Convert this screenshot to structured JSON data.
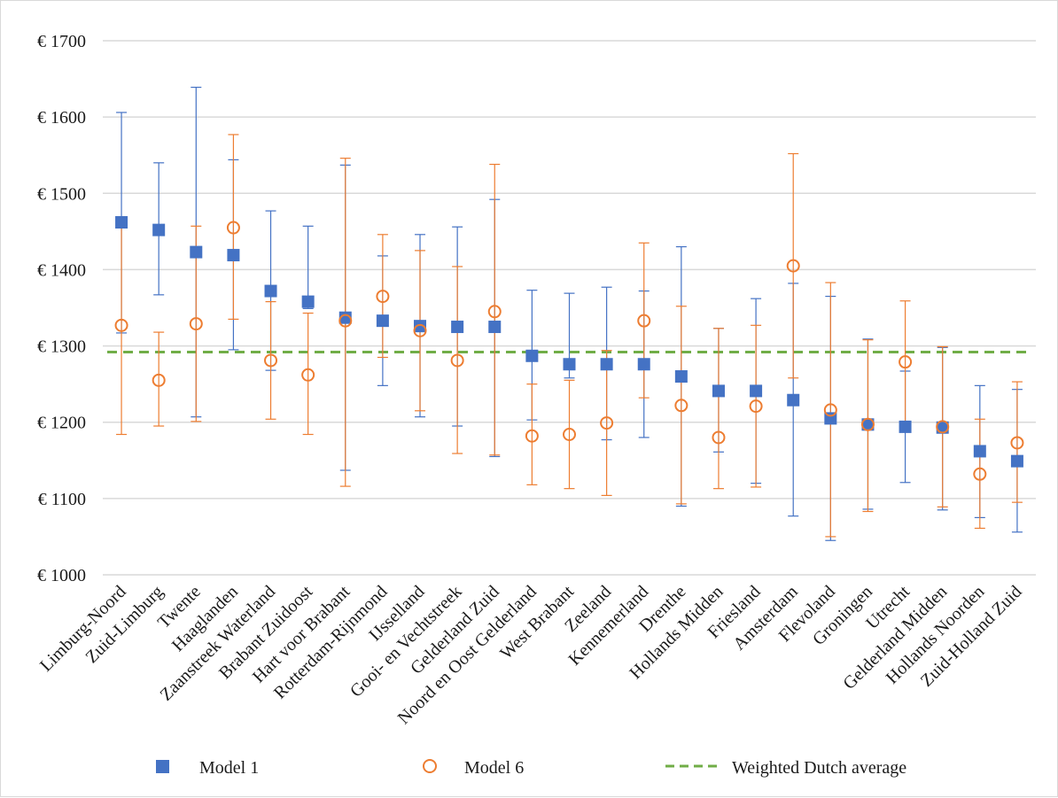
{
  "chart_data": {
    "type": "scatter",
    "title": "",
    "xlabel": "",
    "ylabel": "",
    "ylim": [
      1000,
      1700
    ],
    "y_ticks": [
      1000,
      1100,
      1200,
      1300,
      1400,
      1500,
      1600,
      1700
    ],
    "y_tick_labels": [
      "€ 1000",
      "€ 1100",
      "€ 1200",
      "€ 1300",
      "€ 1400",
      "€ 1500",
      "€ 1600",
      "€ 1700"
    ],
    "grid": true,
    "legend_position": "bottom",
    "categories": [
      "Limburg-Noord",
      "Zuid-Limburg",
      "Twente",
      "Haaglanden",
      "Zaanstreek Waterland",
      "Brabant Zuidoost",
      "Hart voor Brabant",
      "Rotterdam-Rijnmond",
      "IJsselland",
      "Gooi- en Vechtstreek",
      "Gelderland Zuid",
      "Noord en Oost Gelderland",
      "West Brabant",
      "Zeeland",
      "Kennemerland",
      "Drenthe",
      "Hollands Midden",
      "Friesland",
      "Amsterdam",
      "Flevoland",
      "Groningen",
      "Utrecht",
      "Gelderland Midden",
      "Hollands Noorden",
      "Zuid-Holland Zuid"
    ],
    "series": [
      {
        "name": "Model 1",
        "color": "#4472c4",
        "marker": "square",
        "values": [
          1462,
          1452,
          1423,
          1419,
          1372,
          1358,
          1337,
          1333,
          1326,
          1325,
          1325,
          1287,
          1276,
          1276,
          1276,
          1260,
          1241,
          1241,
          1229,
          1205,
          1197,
          1194,
          1193,
          1162,
          1149
        ],
        "err_low": [
          1317,
          1367,
          1207,
          1295,
          1268,
          1349,
          1137,
          1248,
          1207,
          1195,
          1155,
          1203,
          1258,
          1177,
          1180,
          1090,
          1161,
          1120,
          1077,
          1045,
          1086,
          1121,
          1085,
          1075,
          1056
        ],
        "err_high": [
          1606,
          1540,
          1639,
          1544,
          1477,
          1457,
          1537,
          1418,
          1446,
          1456,
          1492,
          1373,
          1369,
          1377,
          1372,
          1430,
          1323,
          1362,
          1382,
          1365,
          1309,
          1267,
          1298,
          1248,
          1243
        ]
      },
      {
        "name": "Model 6",
        "color": "#ed7d31",
        "marker": "circle",
        "values": [
          1327,
          1255,
          1329,
          1455,
          1281,
          1262,
          1333,
          1365,
          1320,
          1281,
          1345,
          1182,
          1184,
          1199,
          1333,
          1222,
          1180,
          1221,
          1405,
          1216,
          1197,
          1279,
          1194,
          1132,
          1173
        ],
        "err_low": [
          1184,
          1195,
          1201,
          1335,
          1204,
          1184,
          1116,
          1285,
          1215,
          1159,
          1157,
          1118,
          1113,
          1104,
          1232,
          1093,
          1113,
          1115,
          1258,
          1050,
          1083,
          1200,
          1089,
          1061,
          1095
        ],
        "err_high": [
          1467,
          1318,
          1457,
          1577,
          1358,
          1343,
          1546,
          1446,
          1425,
          1404,
          1538,
          1250,
          1255,
          1294,
          1435,
          1352,
          1323,
          1327,
          1552,
          1383,
          1308,
          1359,
          1299,
          1204,
          1253
        ]
      },
      {
        "name": "Weighted Dutch average",
        "color": "#70ad47",
        "marker": "dashed-line",
        "value": 1292
      }
    ]
  }
}
